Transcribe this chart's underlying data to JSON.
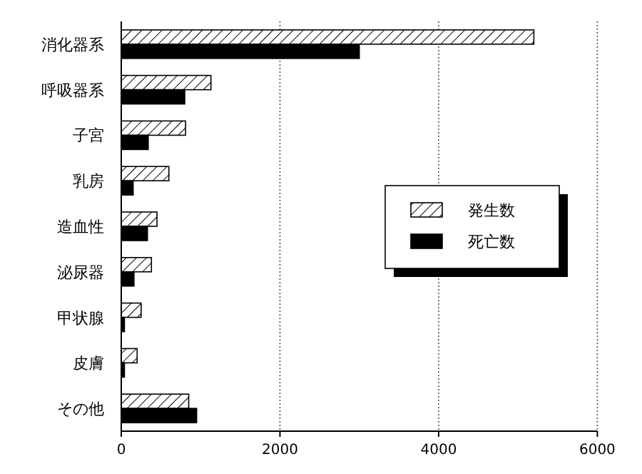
{
  "chart_data": {
    "type": "bar",
    "orientation": "horizontal",
    "categories": [
      "消化器系",
      "呼吸器系",
      "子宮",
      "乳房",
      "造血性",
      "泌尿器",
      "甲状腺",
      "皮膚",
      "その他"
    ],
    "series": [
      {
        "name": "発生数",
        "color": "#ffffff",
        "values": [
          5200,
          1130,
          810,
          600,
          450,
          380,
          250,
          200,
          850
        ]
      },
      {
        "name": "死亡数",
        "color": "#000000",
        "values": [
          3000,
          800,
          340,
          150,
          330,
          160,
          40,
          40,
          950
        ]
      }
    ],
    "xlim": [
      0,
      6000
    ],
    "xticks": [
      0,
      2000,
      4000,
      6000
    ],
    "grid": "x",
    "legend": "right"
  }
}
